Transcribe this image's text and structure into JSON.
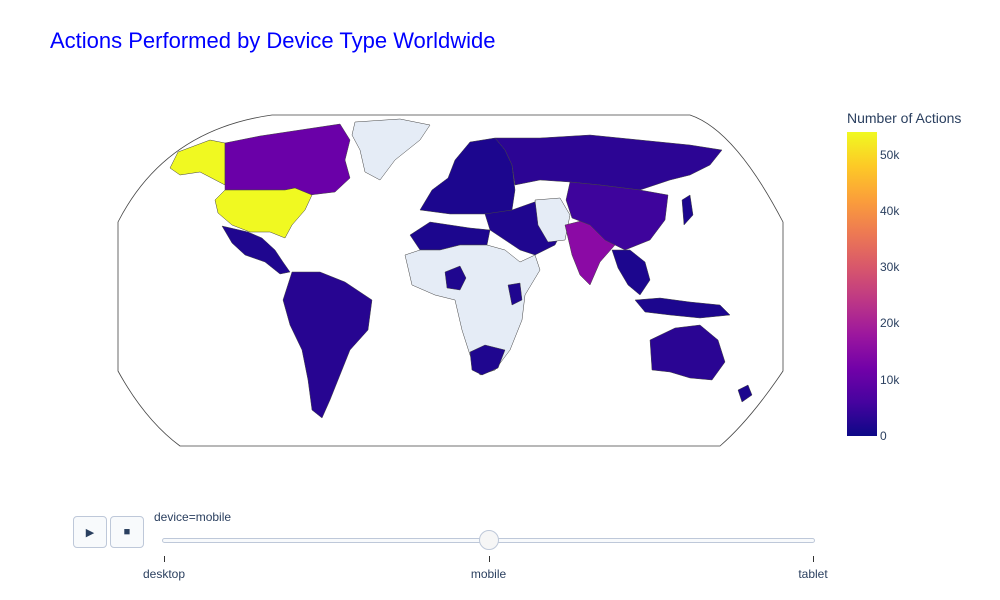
{
  "title": "Actions Performed by Device Type Worldwide",
  "colorbar": {
    "title": "Number of Actions",
    "ticks": [
      {
        "label": "0",
        "value": 0
      },
      {
        "label": "10k",
        "value": 10000
      },
      {
        "label": "20k",
        "value": 20000
      },
      {
        "label": "30k",
        "value": 30000
      },
      {
        "label": "40k",
        "value": 40000
      },
      {
        "label": "50k",
        "value": 50000
      }
    ],
    "max_value": 54000,
    "colorscale": "plasma"
  },
  "controls": {
    "play_icon": "play-icon",
    "stop_icon": "stop-icon"
  },
  "slider": {
    "current_label": "device=mobile",
    "steps": [
      "desktop",
      "mobile",
      "tablet"
    ],
    "active_index": 1
  },
  "chart_data": {
    "type": "choropleth",
    "projection": "robinson",
    "frame": "mobile",
    "color_metric": "Number of Actions",
    "no_data_color": "#e5ecf6",
    "regions": [
      {
        "name": "United States",
        "value": 53000
      },
      {
        "name": "Canada",
        "value": 9000
      },
      {
        "name": "India",
        "value": 13000
      },
      {
        "name": "China",
        "value": 3000
      },
      {
        "name": "Russia",
        "value": 1000
      },
      {
        "name": "Brazil",
        "value": 1500
      },
      {
        "name": "Australia",
        "value": 1200
      },
      {
        "name": "Mexico",
        "value": 1000
      }
    ]
  }
}
